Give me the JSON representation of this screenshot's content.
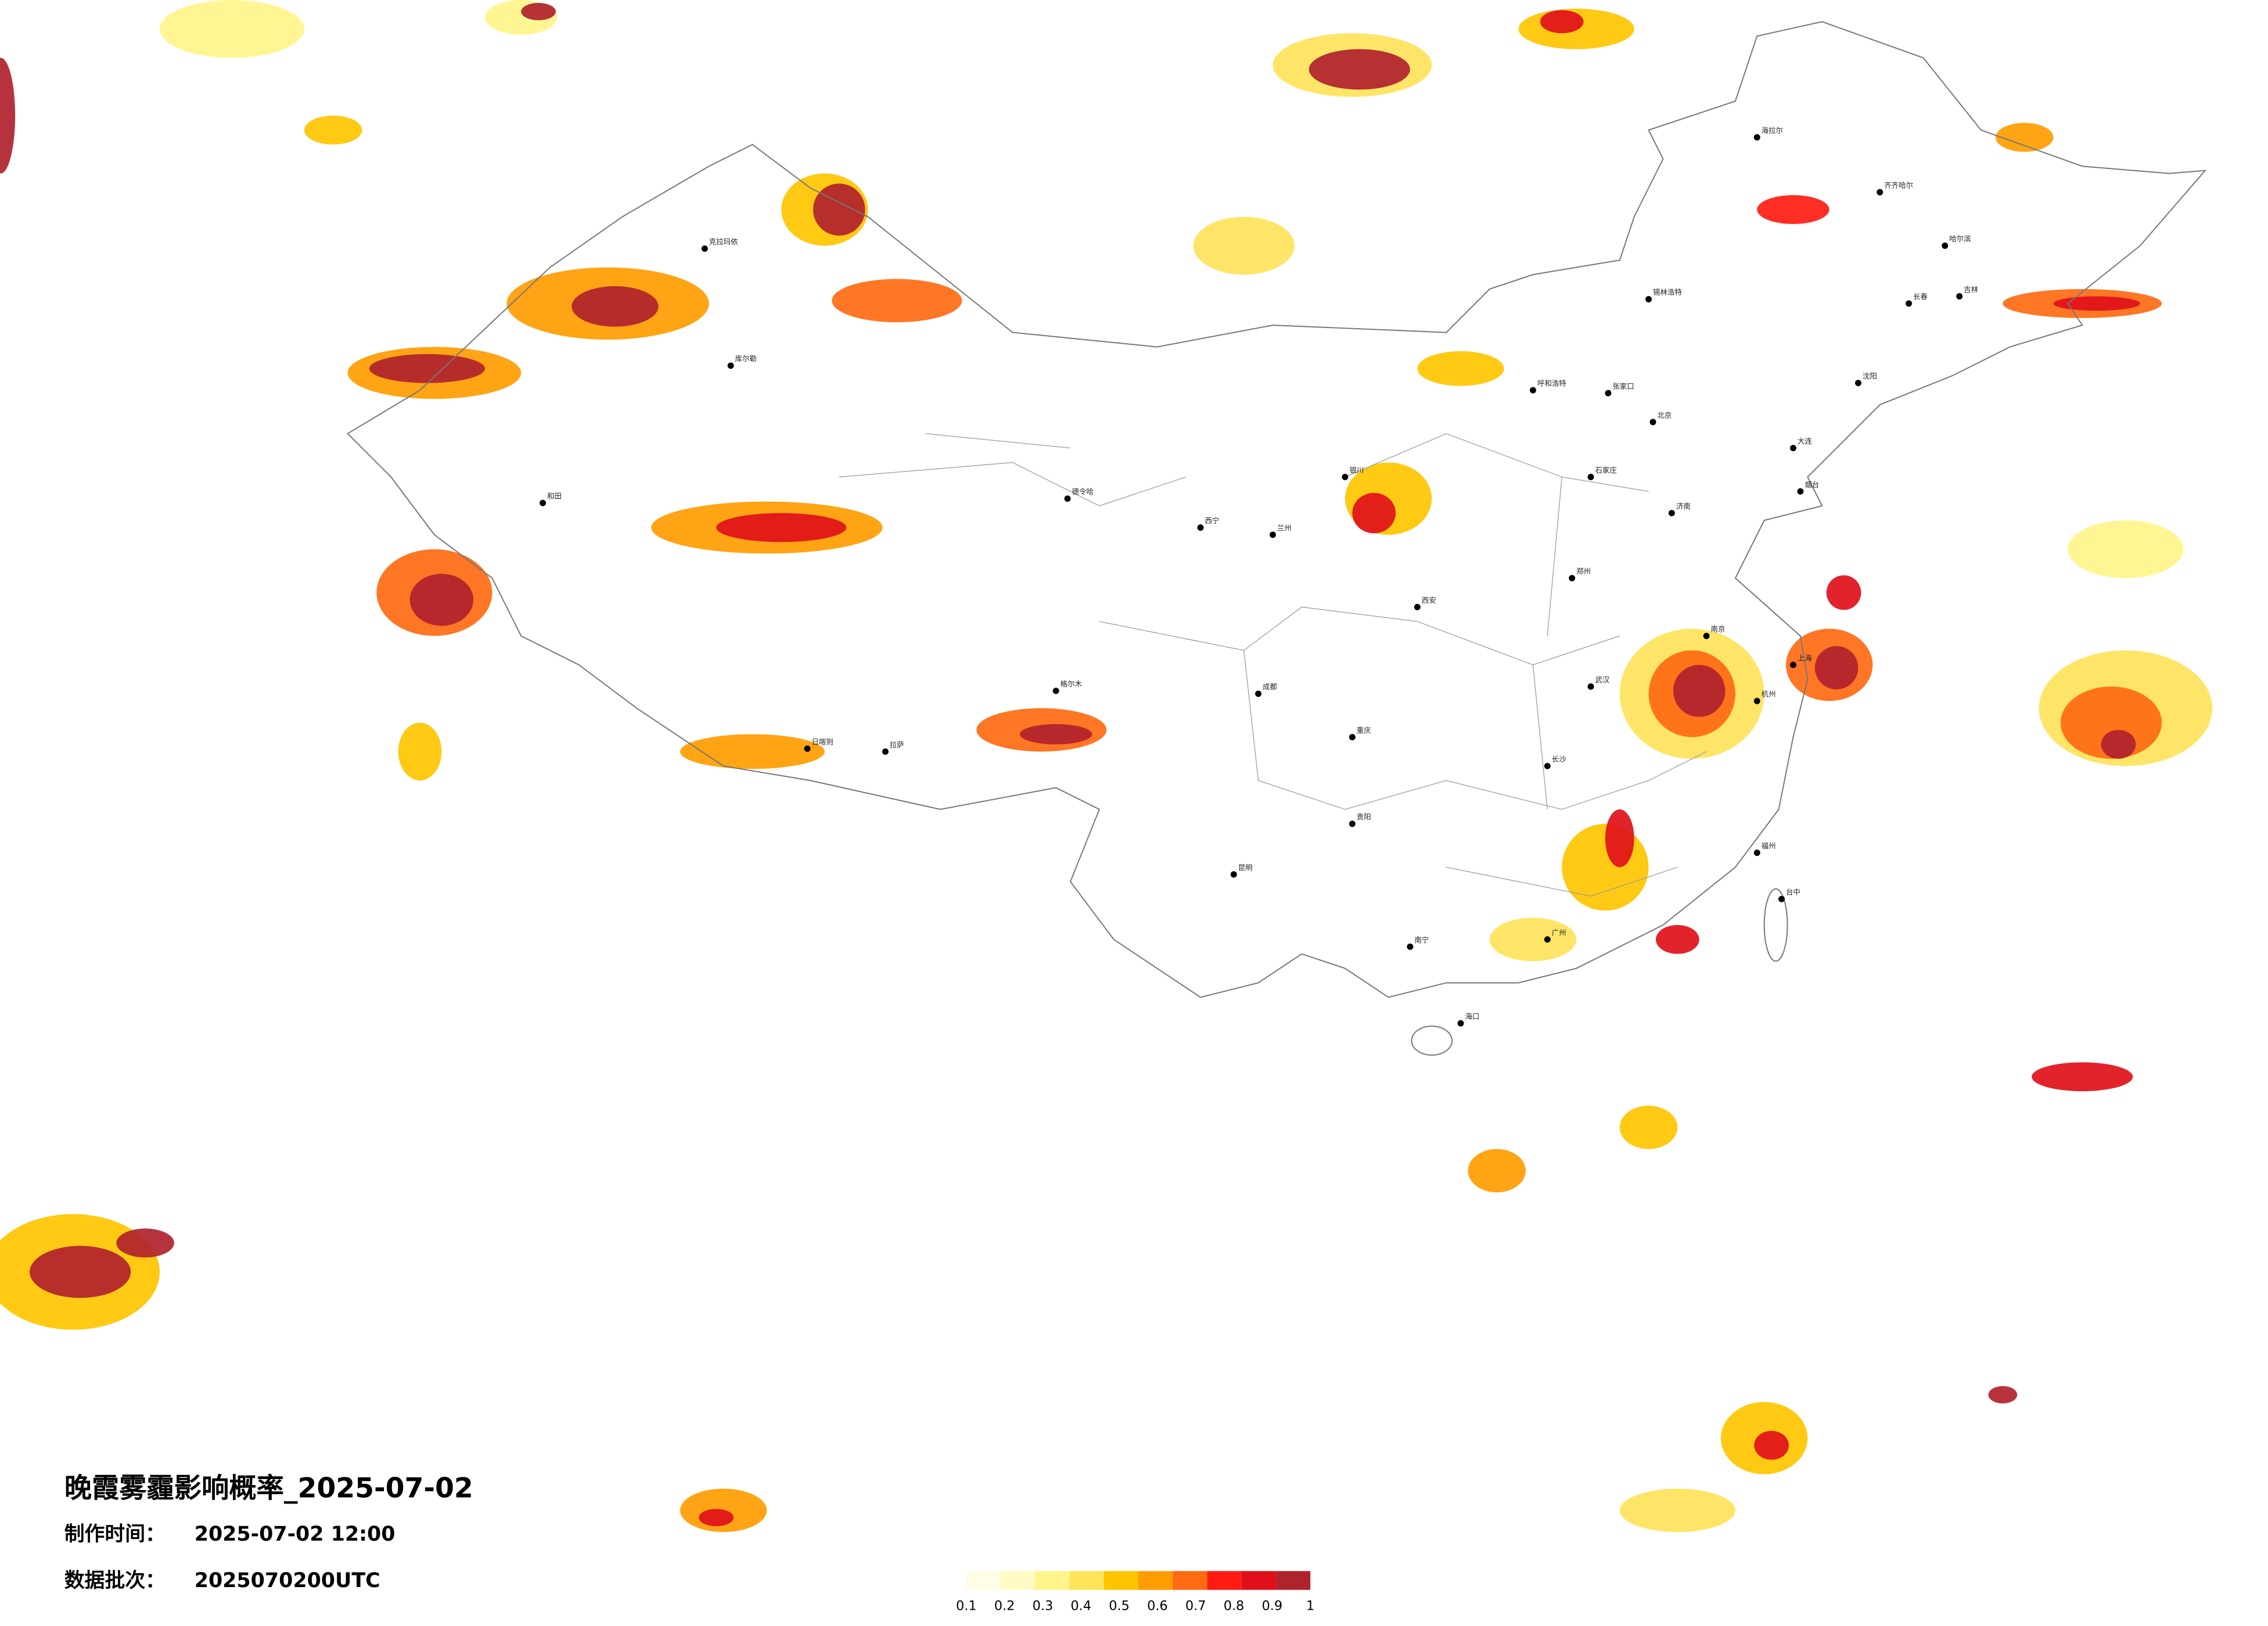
{
  "header": {
    "title": "晚霞雾霾影响概率_2025-07-02"
  },
  "meta": [
    {
      "label": "制作时间：",
      "value": "2025-07-02 12:00"
    },
    {
      "label": "数据批次：",
      "value": "2025070200UTC"
    }
  ],
  "legend": {
    "ticks": [
      0.1,
      0.2,
      0.3,
      0.4,
      0.5,
      0.6,
      0.7,
      0.8,
      0.9,
      1
    ],
    "colors": [
      "#fffde6",
      "#fffbc2",
      "#fff58a",
      "#ffe35a",
      "#ffc400",
      "#ff9c00",
      "#ff6a12",
      "#ff1c12",
      "#e0101a",
      "#b0222c"
    ]
  },
  "cities": [
    {
      "name": "北京"
    },
    {
      "name": "张家口"
    },
    {
      "name": "石家庄"
    },
    {
      "name": "济南"
    },
    {
      "name": "郑州"
    },
    {
      "name": "西安"
    },
    {
      "name": "武汉"
    },
    {
      "name": "长沙"
    },
    {
      "name": "南京"
    },
    {
      "name": "上海"
    },
    {
      "name": "杭州"
    },
    {
      "name": "福州"
    },
    {
      "name": "广州"
    },
    {
      "name": "南宁"
    },
    {
      "name": "贵阳"
    },
    {
      "name": "昆明"
    },
    {
      "name": "成都"
    },
    {
      "name": "重庆"
    },
    {
      "name": "兰州"
    },
    {
      "name": "西宁"
    },
    {
      "name": "银川"
    },
    {
      "name": "呼和浩特"
    },
    {
      "name": "沈阳"
    },
    {
      "name": "长春"
    },
    {
      "name": "哈尔滨"
    },
    {
      "name": "拉萨"
    },
    {
      "name": "海拉尔"
    },
    {
      "name": "齐齐哈尔"
    },
    {
      "name": "海口"
    },
    {
      "name": "台中"
    },
    {
      "name": "和田"
    },
    {
      "name": "库尔勒"
    },
    {
      "name": "克拉玛依"
    },
    {
      "name": "锡林浩特"
    },
    {
      "name": "德令哈"
    },
    {
      "name": "格尔木"
    },
    {
      "name": "日喀则"
    },
    {
      "name": "烟台"
    },
    {
      "name": "大连"
    },
    {
      "name": "吉林"
    }
  ]
}
